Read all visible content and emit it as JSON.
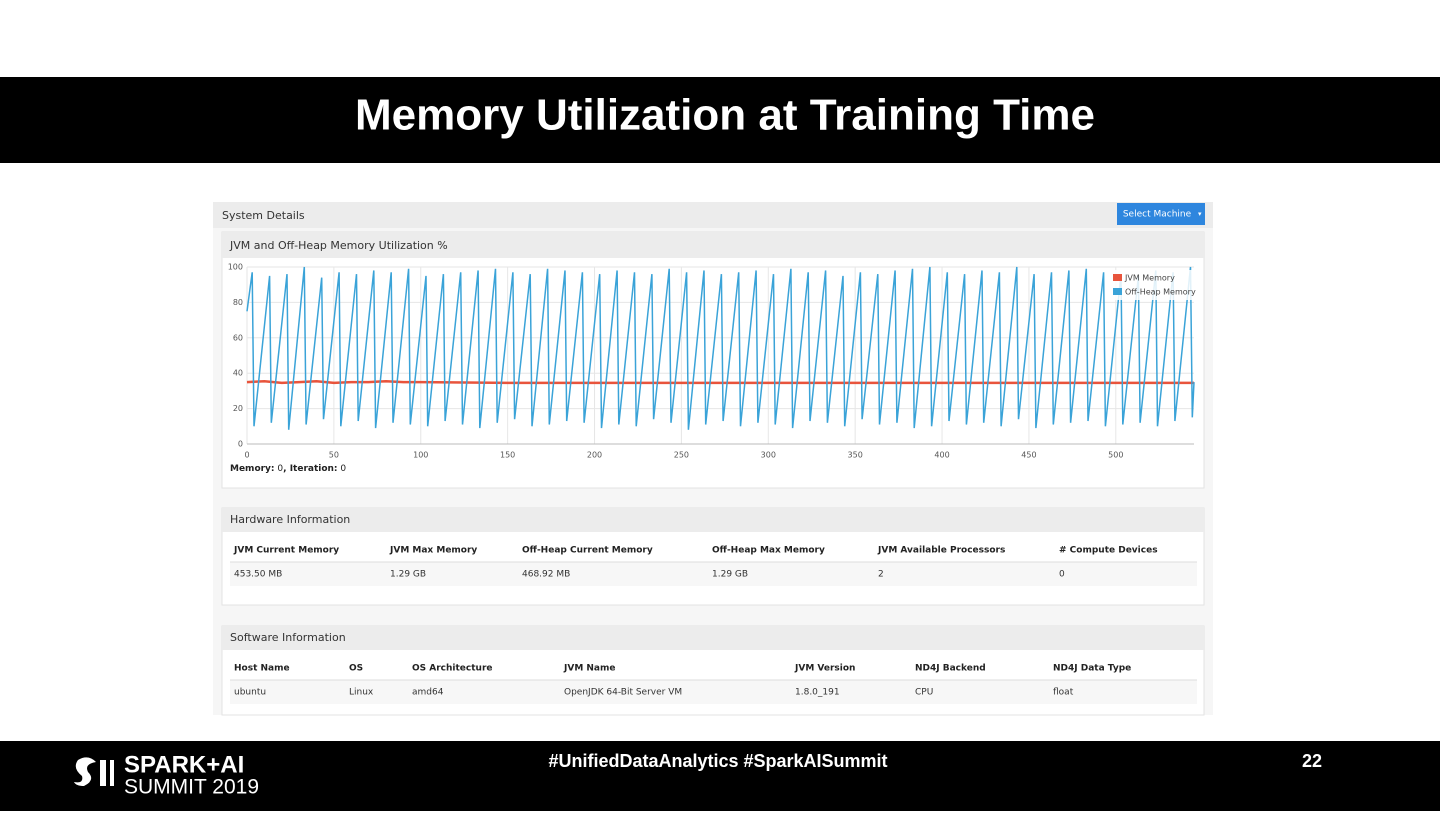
{
  "slide": {
    "title": "Memory Utilization at Training Time",
    "hashtags": "#UnifiedDataAnalytics #SparkAISummit",
    "page_number": "22",
    "logo_line1": "SPARK+AI",
    "logo_line2": "SUMMIT 2019"
  },
  "panel": {
    "title": "System Details",
    "button": "Select Machine"
  },
  "chart_data": {
    "type": "line",
    "title": "JVM and Off-Heap Memory Utilization %",
    "xlim": [
      0,
      545
    ],
    "ylim": [
      0,
      100
    ],
    "xticks": [
      0,
      50,
      100,
      150,
      200,
      250,
      300,
      350,
      400,
      450,
      500
    ],
    "yticks": [
      0,
      20,
      40,
      60,
      80,
      100
    ],
    "grid": true,
    "legend": "top-right",
    "series": [
      {
        "name": "JVM Memory",
        "color": "#e8543c",
        "x": [
          0,
          10,
          20,
          30,
          40,
          50,
          60,
          70,
          80,
          90,
          100,
          150,
          200,
          300,
          400,
          545
        ],
        "values": [
          35,
          35.5,
          34.5,
          35,
          35.5,
          34.5,
          35,
          35,
          35.5,
          35,
          35,
          34.5,
          34.5,
          34.5,
          34.5,
          34.5
        ]
      },
      {
        "name": "Off-Heap Memory",
        "color": "#3aa3d8",
        "x": [
          0,
          3,
          4,
          13,
          14,
          23,
          24,
          33,
          34,
          43,
          44,
          53,
          54,
          63,
          64,
          73,
          74,
          83,
          84,
          93,
          94,
          103,
          104,
          113,
          114,
          123,
          124,
          133,
          134,
          143,
          144,
          153,
          154,
          163,
          164,
          173,
          174,
          183,
          184,
          193,
          194,
          203,
          204,
          213,
          214,
          223,
          224,
          233,
          234,
          243,
          244,
          253,
          254,
          263,
          264,
          273,
          274,
          283,
          284,
          293,
          294,
          303,
          304,
          313,
          314,
          323,
          324,
          333,
          334,
          343,
          344,
          353,
          354,
          363,
          364,
          373,
          374,
          383,
          384,
          393,
          394,
          403,
          404,
          413,
          414,
          423,
          424,
          433,
          434,
          443,
          444,
          453,
          454,
          463,
          464,
          473,
          474,
          483,
          484,
          493,
          494,
          503,
          504,
          513,
          514,
          523,
          524,
          533,
          534,
          543,
          544,
          545
        ],
        "values": [
          75,
          97,
          10,
          95,
          12,
          96,
          8,
          100,
          11,
          94,
          14,
          97,
          10,
          96,
          13,
          98,
          9,
          97,
          12,
          99,
          11,
          95,
          10,
          96,
          13,
          97,
          11,
          98,
          9,
          99,
          12,
          97,
          14,
          96,
          10,
          99,
          11,
          98,
          13,
          97,
          12,
          96,
          9,
          98,
          11,
          97,
          10,
          96,
          14,
          99,
          12,
          97,
          8,
          98,
          11,
          96,
          13,
          97,
          10,
          98,
          12,
          96,
          11,
          99,
          9,
          97,
          13,
          98,
          12,
          95,
          10,
          97,
          14,
          96,
          11,
          98,
          12,
          99,
          9,
          100,
          10,
          97,
          13,
          96,
          11,
          98,
          12,
          97,
          10,
          100,
          14,
          96,
          9,
          97,
          11,
          98,
          12,
          99,
          13,
          97,
          10,
          96,
          11,
          95,
          12,
          98,
          10,
          97,
          13,
          100,
          15,
          35
        ]
      }
    ],
    "status": {
      "memory_label": "Memory:",
      "memory_value": "0",
      "iteration_label": ", Iteration:",
      "iteration_value": "0"
    }
  },
  "hardware": {
    "title": "Hardware Information",
    "headers": [
      "JVM Current Memory",
      "JVM Max Memory",
      "Off-Heap Current Memory",
      "Off-Heap Max Memory",
      "JVM Available Processors",
      "# Compute Devices"
    ],
    "rows": [
      [
        "453.50 MB",
        "1.29 GB",
        "468.92 MB",
        "1.29 GB",
        "2",
        "0"
      ]
    ]
  },
  "software": {
    "title": "Software Information",
    "headers": [
      "Host Name",
      "OS",
      "OS Architecture",
      "JVM Name",
      "JVM Version",
      "ND4J Backend",
      "ND4J Data Type"
    ],
    "rows": [
      [
        "ubuntu",
        "Linux",
        "amd64",
        "OpenJDK 64-Bit Server VM",
        "1.8.0_191",
        "CPU",
        "float"
      ]
    ]
  }
}
